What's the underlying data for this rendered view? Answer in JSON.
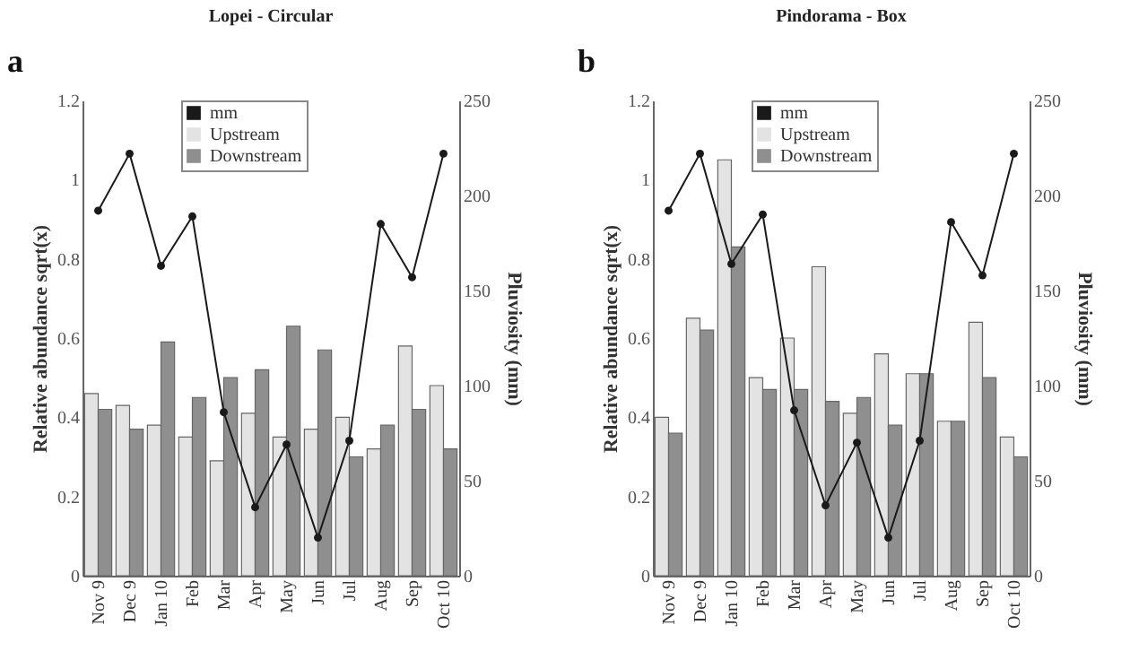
{
  "chart_data": [
    {
      "type": "bar",
      "title": "Lopei - Circular",
      "annotations": [
        "a"
      ],
      "ylabel": "Relative abundance sqrt(x)",
      "y2label": "Pluviosity (mm)",
      "categories": [
        "Nov 9",
        "Dec 9",
        "Jan 10",
        "Feb",
        "Mar",
        "Apr",
        "May",
        "Jun",
        "Jul",
        "Aug",
        "Sep",
        "Oct 10"
      ],
      "series": [
        {
          "name": "mm",
          "type": "line",
          "axis": "y2",
          "color": "#1a1a1a",
          "marker": "circle",
          "values": [
            192,
            222,
            163,
            189,
            86,
            36,
            69,
            20,
            71,
            185,
            157,
            222
          ]
        },
        {
          "name": "Upstream",
          "color": "#e3e3e3",
          "values": [
            0.46,
            0.43,
            0.38,
            0.35,
            0.29,
            0.41,
            0.35,
            0.37,
            0.4,
            0.32,
            0.58,
            0.48
          ]
        },
        {
          "name": "Downstream",
          "color": "#8f8f8f",
          "values": [
            0.42,
            0.37,
            0.59,
            0.45,
            0.5,
            0.52,
            0.63,
            0.57,
            0.3,
            0.38,
            0.42,
            0.32
          ]
        }
      ],
      "ylim": [
        0,
        1.2
      ],
      "yticks": [
        0,
        0.2,
        0.4,
        0.6,
        0.8,
        1,
        1.2
      ],
      "y2lim": [
        0,
        250
      ],
      "y2ticks": [
        0,
        50,
        100,
        150,
        200,
        250
      ],
      "legend": "top",
      "grid": false
    },
    {
      "type": "bar",
      "title": "Pindorama - Box",
      "annotations": [
        "b"
      ],
      "ylabel": "Relative abundance sqrt(x)",
      "y2label": "Pluviosity (mm)",
      "categories": [
        "Nov 9",
        "Dec 9",
        "Jan 10",
        "Feb",
        "Mar",
        "Apr",
        "May",
        "Jun",
        "Jul",
        "Aug",
        "Sep",
        "Oct 10"
      ],
      "series": [
        {
          "name": "mm",
          "type": "line",
          "axis": "y2",
          "color": "#1a1a1a",
          "marker": "circle",
          "values": [
            192,
            222,
            164,
            190,
            87,
            37,
            70,
            20,
            71,
            186,
            158,
            222
          ]
        },
        {
          "name": "Upstream",
          "color": "#e3e3e3",
          "values": [
            0.4,
            0.65,
            1.05,
            0.5,
            0.6,
            0.78,
            0.41,
            0.56,
            0.51,
            0.39,
            0.64,
            0.35
          ]
        },
        {
          "name": "Downstream",
          "color": "#8f8f8f",
          "values": [
            0.36,
            0.62,
            0.83,
            0.47,
            0.47,
            0.44,
            0.45,
            0.38,
            0.51,
            0.39,
            0.5,
            0.3
          ]
        }
      ],
      "ylim": [
        0,
        1.2
      ],
      "yticks": [
        0,
        0.2,
        0.4,
        0.6,
        0.8,
        1,
        1.2
      ],
      "y2lim": [
        0,
        250
      ],
      "y2ticks": [
        0,
        50,
        100,
        150,
        200,
        250
      ],
      "legend": "top",
      "grid": false
    }
  ]
}
